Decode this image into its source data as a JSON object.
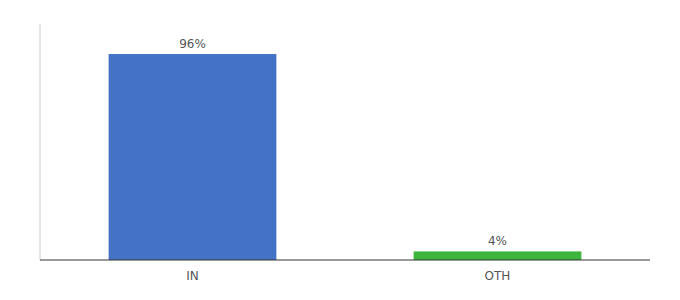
{
  "chart_data": {
    "type": "bar",
    "categories": [
      "IN",
      "OTH"
    ],
    "values": [
      96,
      4
    ],
    "value_labels": [
      "96%",
      "4%"
    ],
    "colors": [
      "#4472c4",
      "#3db53d"
    ],
    "ylim": [
      0,
      110
    ],
    "data_labels": true,
    "tick_labels": "x"
  }
}
